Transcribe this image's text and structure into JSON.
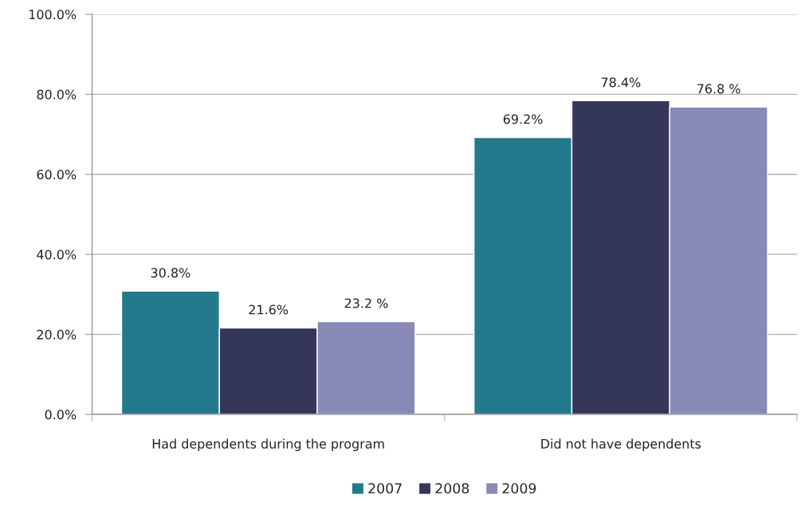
{
  "chart_data": {
    "type": "bar",
    "categories": [
      "Had dependents during the program",
      "Did not have dependents"
    ],
    "series": [
      {
        "name": "2007",
        "color": "#237a8c",
        "values": [
          30.8,
          69.2
        ],
        "value_labels": [
          "30.8%",
          "69.2%"
        ]
      },
      {
        "name": "2008",
        "color": "#35375a",
        "values": [
          21.6,
          78.4
        ],
        "value_labels": [
          "21.6%",
          "78.4%"
        ]
      },
      {
        "name": "2009",
        "color": "#8789b7",
        "values": [
          23.2,
          76.8
        ],
        "value_labels": [
          "23.2 %",
          "76.8 %"
        ]
      }
    ],
    "ylim": [
      0,
      100
    ],
    "yticks": [
      {
        "value": 0,
        "label": "0.0%"
      },
      {
        "value": 20,
        "label": "20.0%"
      },
      {
        "value": 40,
        "label": "40.0%"
      },
      {
        "value": 60,
        "label": "60.0%"
      },
      {
        "value": 80,
        "label": "80.0%"
      },
      {
        "value": 100,
        "label": "100.0%"
      }
    ],
    "grid": "y",
    "legend": "bottom"
  }
}
